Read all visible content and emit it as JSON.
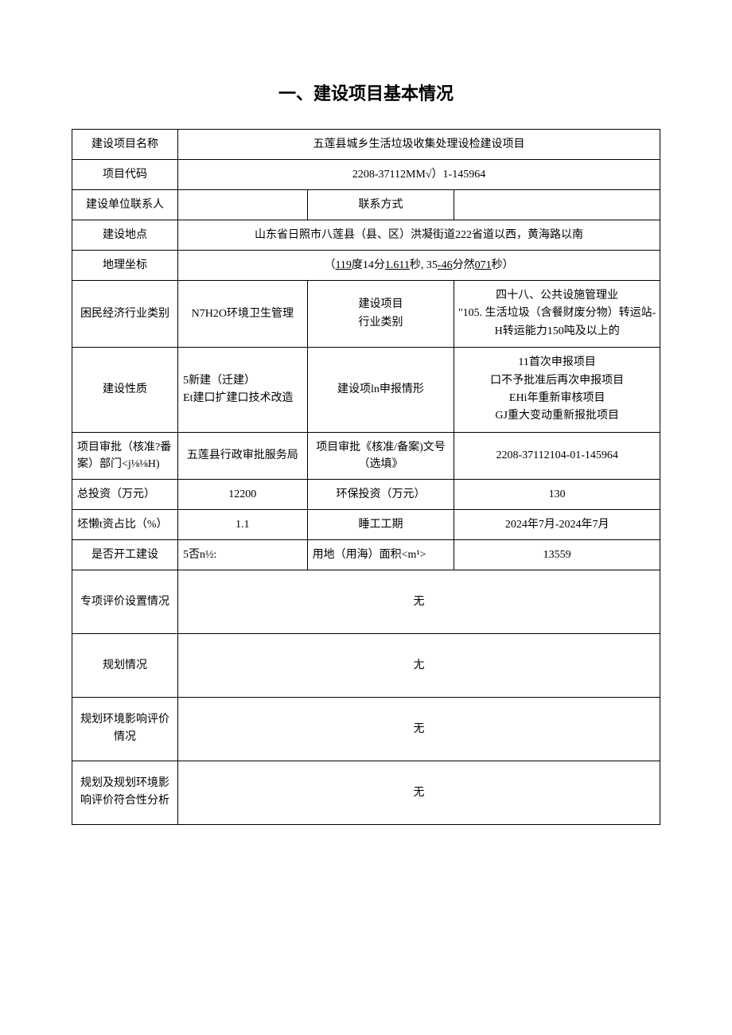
{
  "title": "一、建设项目基本情况",
  "rows": {
    "project_name": {
      "label": "建设项目名称",
      "value": "五莲县城乡生活垃圾收集处理设检建设项目"
    },
    "project_code": {
      "label": "项目代码",
      "value": "2208-37112MM√）1-145964"
    },
    "contact_person": {
      "label": "建设单位联系人",
      "value": "",
      "label2": "联系方式",
      "value2": ""
    },
    "location": {
      "label": "建设地点",
      "value": "山东省日照市八莲县（县、区）洪凝街道222省道以西，黄海路以南"
    },
    "coordinates": {
      "label": "地理坐标",
      "prefix": "（",
      "deg1": "119",
      "mid1": "度14分",
      "sec1": "1.611",
      "mid2": "秒, 35",
      "dash": "-46",
      "mid3": "分然",
      "sec2": "071",
      "suffix": "秒）"
    },
    "economy_category": {
      "label": "困民经济行业类别",
      "value": "N7H2O环境卫生管理",
      "label2": "建设项目\n行业类别",
      "value2": "四十八、公共设施管理业\n\"105. 生活垃圾（含餐财废分物）转运站-H转运能力150吨及以上的"
    },
    "build_nature": {
      "label": "建设性质",
      "value": "5新建（迁建）\nEt建口扩建口技术改造",
      "label2": "建设项ln申报情形",
      "value2": "11首次申报项目\n口不予批准后再次申报项目\nEHi年重新审核项目\nGJ重大变动重新报批项目"
    },
    "approval_dept": {
      "label": "项目审批（核准?番案）部门<j⅛⅛H)",
      "value": "五莲县行政审批服务局",
      "label2": "项目审批《核准/备案)文号（选填》",
      "value2": "2208-37112104-01-145964"
    },
    "total_investment": {
      "label": "总投资（万元）",
      "value": "12200",
      "label2": "环保投资（万元）",
      "value2": "130"
    },
    "investment_ratio": {
      "label": "坯懒t资占比（%）",
      "value": "1.1",
      "label2": "睡工工期",
      "value2": "2024年7月-2024年7月"
    },
    "started": {
      "label": "是否开工建设",
      "value": "5否n½:",
      "label2": "用地（用海）面积<m¹>",
      "value2": "13559"
    },
    "special_eval": {
      "label": "专项评价设置情况",
      "value": "无"
    },
    "planning": {
      "label": "规划情况",
      "value": "尢"
    },
    "planning_env_eval": {
      "label": "规划环境影响评价\n情况",
      "value": "无"
    },
    "planning_compliance": {
      "label": "规划及规划环境影响评价符合性分析",
      "value": "无"
    }
  }
}
